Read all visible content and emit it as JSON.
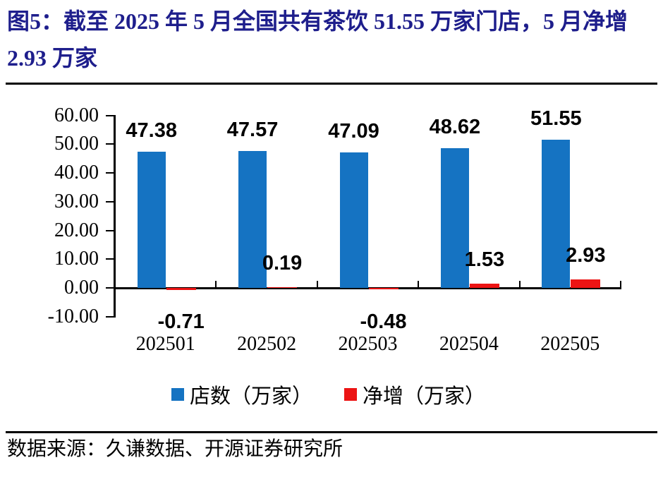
{
  "figure": {
    "title": "图5：截至 2025 年 5 月全国共有茶饮 51.55 万家门店，5 月净增 2.93 万家",
    "source": "数据来源：久谦数据、开源证券研究所"
  },
  "colors": {
    "bar_blue": "#1573C2",
    "bar_red": "#EC1414",
    "title_navy": "#1E1E8C",
    "axis_black": "#000000"
  },
  "chart_data": {
    "type": "bar",
    "categories": [
      "202501",
      "202502",
      "202503",
      "202504",
      "202505"
    ],
    "series": [
      {
        "name": "店数（万家）",
        "color_key": "bar_blue",
        "values": [
          47.38,
          47.57,
          47.09,
          48.62,
          51.55
        ]
      },
      {
        "name": "净增（万家）",
        "color_key": "bar_red",
        "values": [
          -0.71,
          0.19,
          -0.48,
          1.53,
          2.93
        ]
      }
    ],
    "ylim": [
      -10,
      60
    ],
    "ytick_step": 10,
    "ytick_labels": [
      "60.00",
      "50.00",
      "40.00",
      "30.00",
      "20.00",
      "10.00",
      "0.00",
      "-10.00"
    ],
    "grid": false,
    "legend_position": "bottom",
    "data_labels": true
  }
}
